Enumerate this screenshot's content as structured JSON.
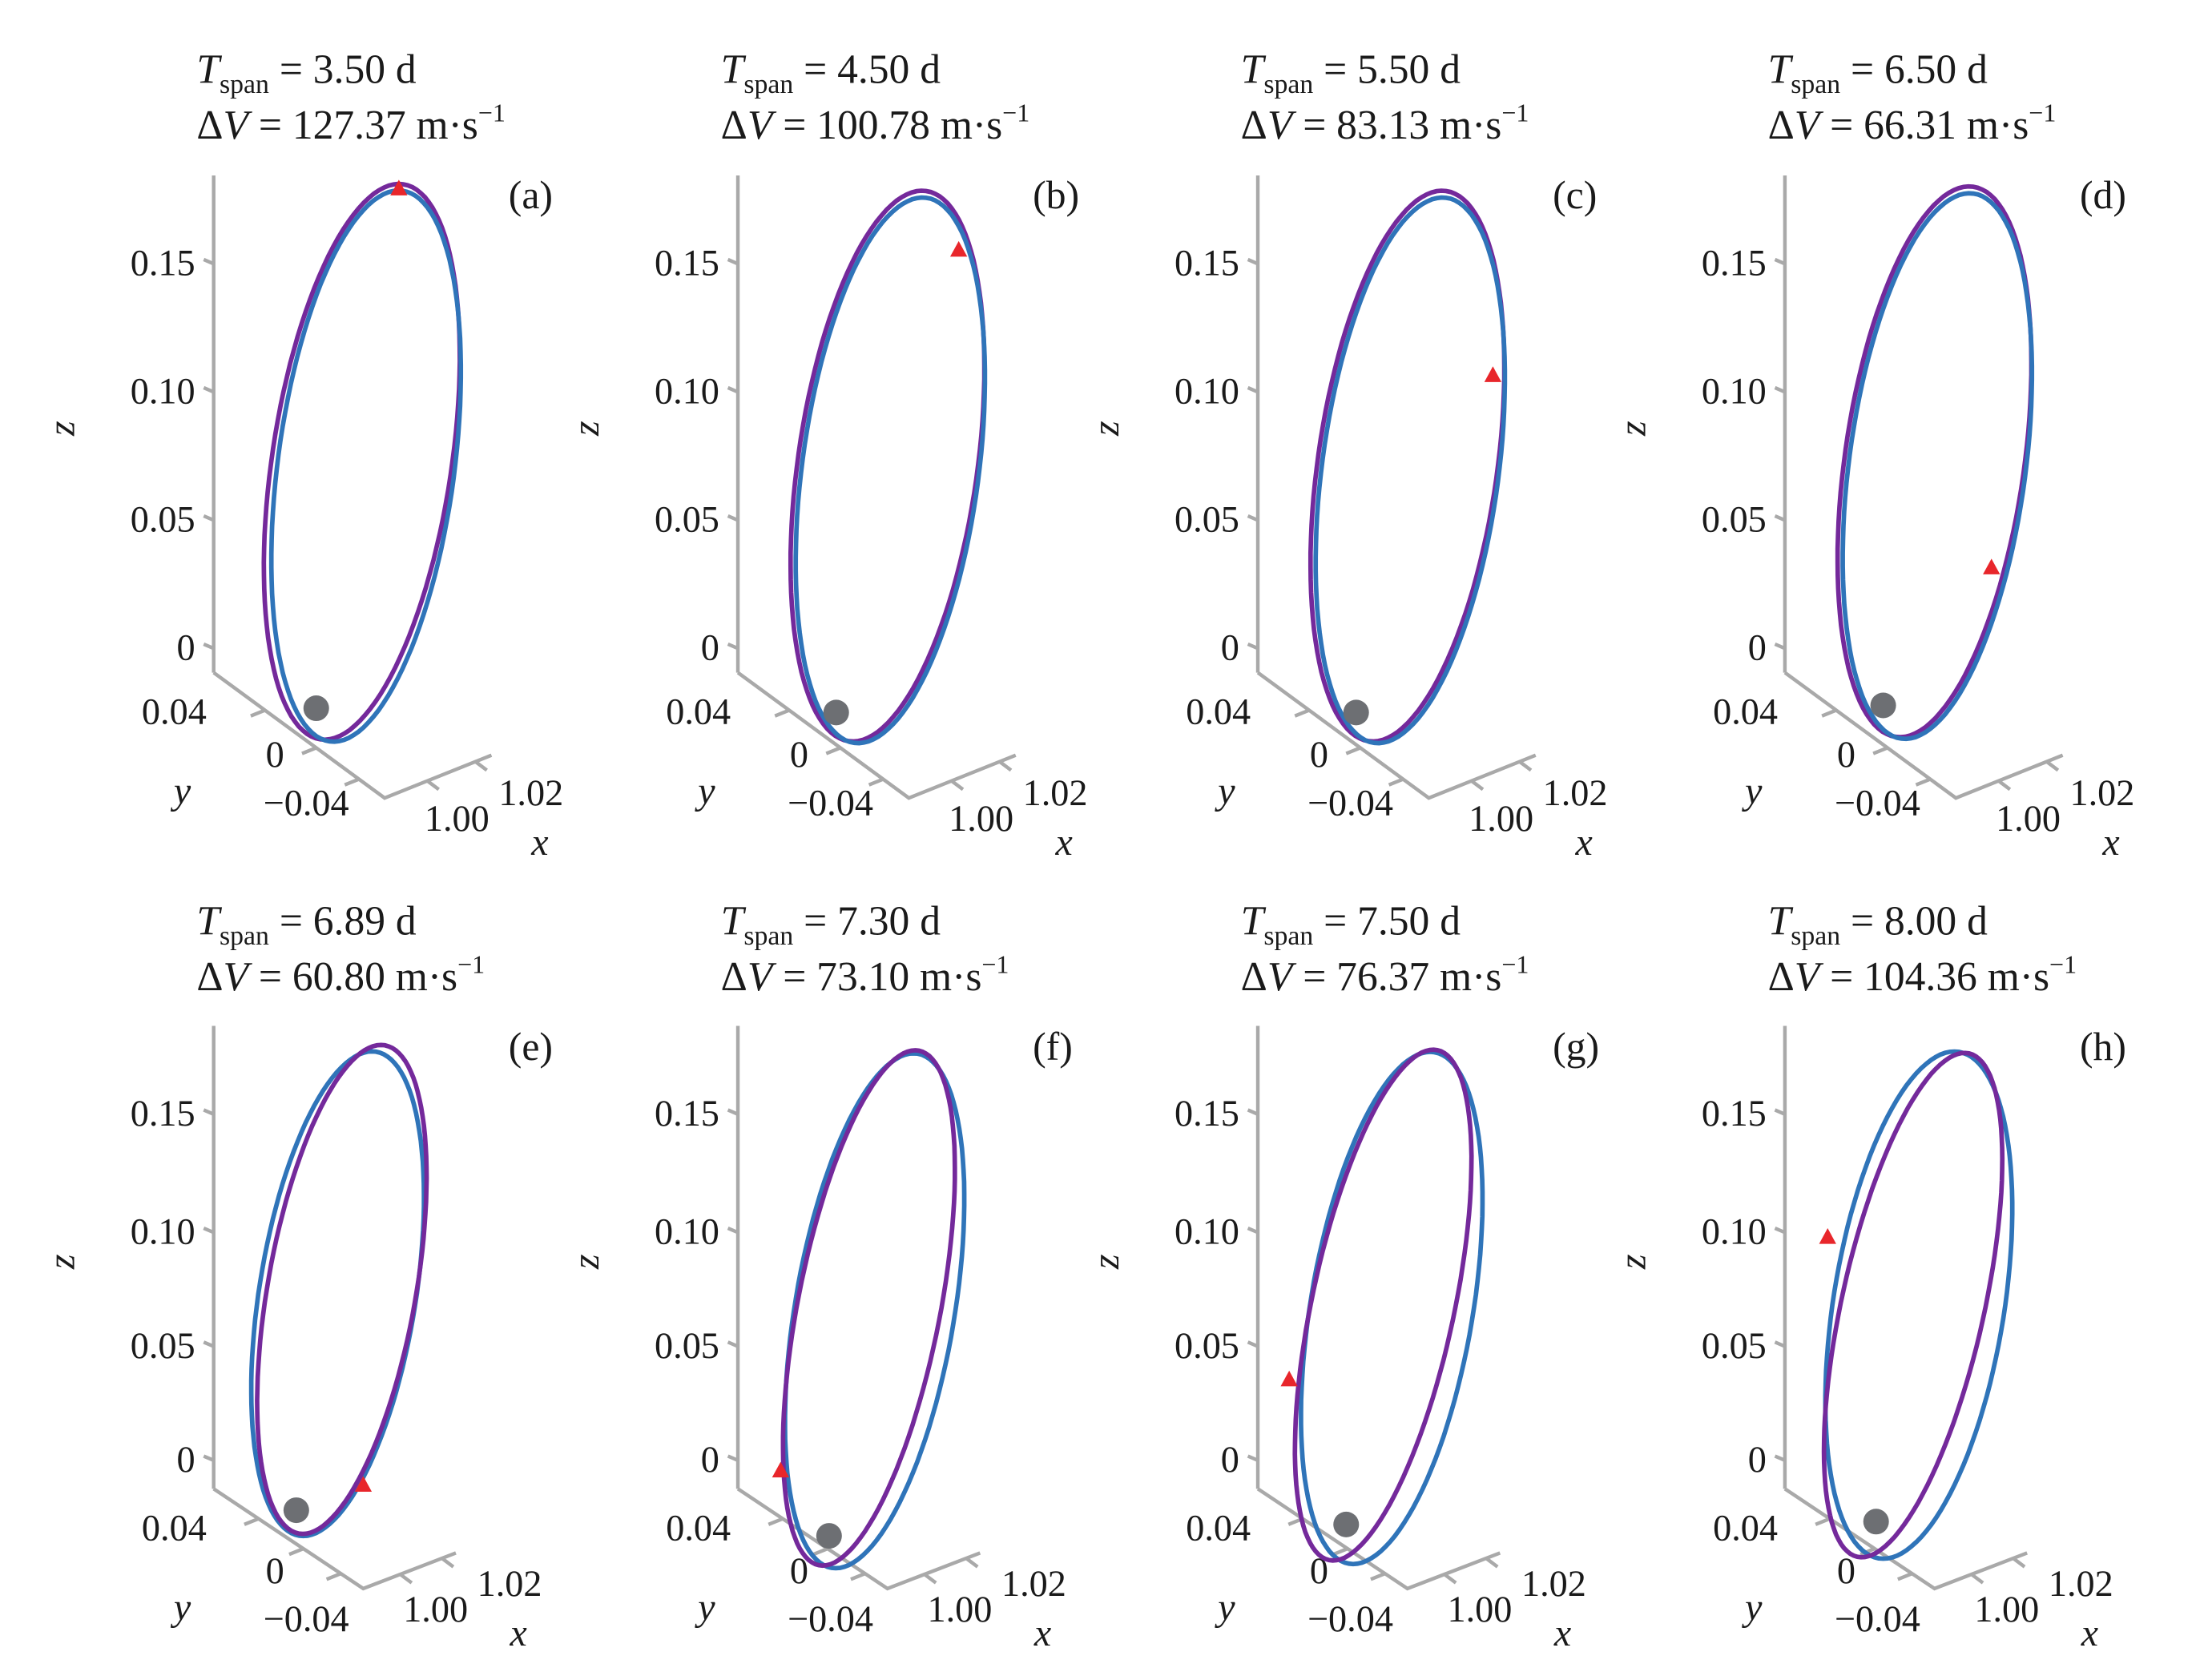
{
  "chart_data": {
    "type": "line",
    "subtype": "3d-trajectory-grid",
    "grid": false,
    "colors": {
      "series_1": "#74299b",
      "series_2": "#2f74b9",
      "marker": "#e8262b",
      "moon": "#6d6f73",
      "axis": "#a9a9a9"
    },
    "title_text": {
      "T": "T",
      "sub": "span",
      "eq_d_prefix": "= ",
      "unit_d": " d",
      "dv_prefix": "ΔV",
      "eq": " = ",
      "unit_ms": " m·s",
      "sup": "−1"
    },
    "axes": {
      "xlabel": "x",
      "ylabel": "y",
      "zlabel": "z",
      "z_ticks": [
        "0",
        "0.05",
        "0.10",
        "0.15"
      ],
      "y_ticks": [
        "0.04",
        "0",
        "−0.04"
      ],
      "x_ticks": [
        "1.00",
        "1.02"
      ]
    },
    "panels": [
      {
        "label": "(a)",
        "Tspan": "3.50",
        "dV": "127.37"
      },
      {
        "label": "(b)",
        "Tspan": "4.50",
        "dV": "100.78"
      },
      {
        "label": "(c)",
        "Tspan": "5.50",
        "dV": "83.13"
      },
      {
        "label": "(d)",
        "Tspan": "6.50",
        "dV": "66.31"
      },
      {
        "label": "(e)",
        "Tspan": "6.89",
        "dV": "60.80"
      },
      {
        "label": "(f)",
        "Tspan": "7.30",
        "dV": "73.10"
      },
      {
        "label": "(g)",
        "Tspan": "7.50",
        "dV": "76.37"
      },
      {
        "label": "(h)",
        "Tspan": "8.00",
        "dV": "104.36"
      }
    ]
  }
}
